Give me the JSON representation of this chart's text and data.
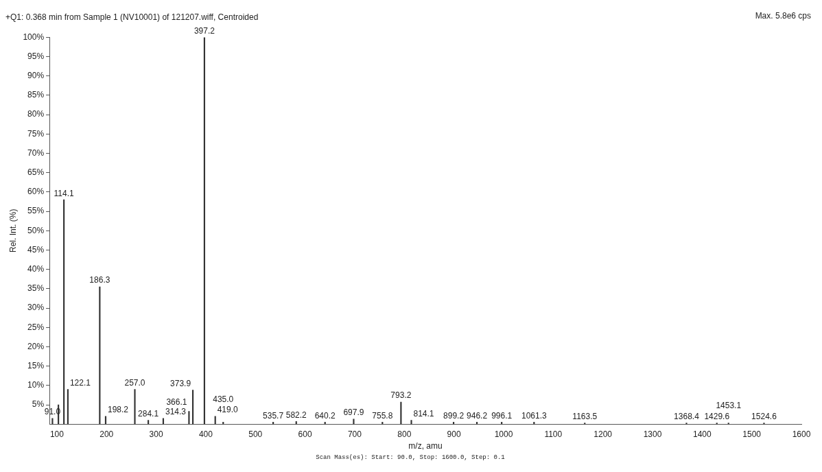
{
  "chart_data": {
    "type": "bar",
    "title": "+Q1: 0.368 min from Sample 1 (NV10001) of 121207.wiff, Centroided",
    "xlabel": "m/z, amu",
    "ylabel": "Rel. Int. (%)",
    "color": "#333333",
    "x": [
      91.0,
      103.0,
      114.1,
      122.1,
      186.3,
      198.2,
      257.0,
      284.1,
      314.3,
      366.1,
      373.9,
      397.2,
      419.0,
      435.0,
      535.7,
      582.2,
      640.2,
      697.9,
      755.8,
      793.2,
      814.1,
      899.2,
      946.2,
      996.1,
      1061.3,
      1163.5,
      1368.4,
      1429.6,
      1453.1,
      1524.6
    ],
    "values": [
      1.5,
      5,
      58,
      9,
      35.5,
      2,
      9,
      1,
      1.5,
      3.3,
      8.8,
      100,
      2,
      0.5,
      0.5,
      0.7,
      0.5,
      1.3,
      0.5,
      5.7,
      1,
      0.5,
      0.5,
      0.5,
      0.5,
      0.3,
      0.3,
      0.3,
      0.3,
      0.3
    ],
    "xlim": [
      85,
      1600
    ],
    "xticks": [
      100,
      200,
      300,
      400,
      500,
      600,
      700,
      800,
      900,
      1000,
      1100,
      1200,
      1300,
      1400,
      1500,
      1600
    ],
    "ylim": [
      0,
      100
    ],
    "yticks": [
      {
        "value": 5,
        "label": "5%"
      },
      {
        "value": 10,
        "label": "10%"
      },
      {
        "value": 15,
        "label": "15%"
      },
      {
        "value": 20,
        "label": "20%"
      },
      {
        "value": 25,
        "label": "25%"
      },
      {
        "value": 30,
        "label": "30%"
      },
      {
        "value": 35,
        "label": "35%"
      },
      {
        "value": 40,
        "label": "40%"
      },
      {
        "value": 45,
        "label": "45%"
      },
      {
        "value": 50,
        "label": "50%"
      },
      {
        "value": 55,
        "label": "55%"
      },
      {
        "value": 60,
        "label": "60%"
      },
      {
        "value": 65,
        "label": "65%"
      },
      {
        "value": 70,
        "label": "70%"
      },
      {
        "value": 75,
        "label": "75%"
      },
      {
        "value": 80,
        "label": "80%"
      },
      {
        "value": 85,
        "label": "85%"
      },
      {
        "value": 90,
        "label": "90%"
      },
      {
        "value": 95,
        "label": "95%"
      },
      {
        "value": 100,
        "label": "100%"
      }
    ],
    "grid": false,
    "legend": false,
    "annotations": [
      "Max. 5.8e6 cps",
      "Scan Mass(es): Start: 90.0, Stop: 1600.0, Step: 0.1",
      {
        "text": "91.0",
        "x": 91.0,
        "y": 1.5
      },
      {
        "text": "114.1",
        "x": 114.1,
        "y": 58
      },
      {
        "text": "122.1",
        "x": 122.1,
        "y": 9
      },
      {
        "text": "186.3",
        "x": 186.3,
        "y": 35.5
      },
      {
        "text": "198.2",
        "x": 198.2,
        "y": 2
      },
      {
        "text": "257.0",
        "x": 257.0,
        "y": 9
      },
      {
        "text": "284.1",
        "x": 284.1,
        "y": 1
      },
      {
        "text": "314.3",
        "x": 314.3,
        "y": 1.5
      },
      {
        "text": "366.1",
        "x": 366.1,
        "y": 3.3
      },
      {
        "text": "373.9",
        "x": 373.9,
        "y": 8.8
      },
      {
        "text": "397.2",
        "x": 397.2,
        "y": 100
      },
      {
        "text": "419.0",
        "x": 419.0,
        "y": 2
      },
      {
        "text": "435.0",
        "x": 435.0,
        "y": 0.5
      },
      {
        "text": "535.7",
        "x": 535.7,
        "y": 0.5
      },
      {
        "text": "582.2",
        "x": 582.2,
        "y": 0.7
      },
      {
        "text": "640.2",
        "x": 640.2,
        "y": 0.5
      },
      {
        "text": "697.9",
        "x": 697.9,
        "y": 1.3
      },
      {
        "text": "755.8",
        "x": 755.8,
        "y": 0.5
      },
      {
        "text": "793.2",
        "x": 793.2,
        "y": 5.7
      },
      {
        "text": "814.1",
        "x": 814.1,
        "y": 1
      },
      {
        "text": "899.2",
        "x": 899.2,
        "y": 0.5
      },
      {
        "text": "946.2",
        "x": 946.2,
        "y": 0.5
      },
      {
        "text": "996.1",
        "x": 996.1,
        "y": 0.5
      },
      {
        "text": "1061.3",
        "x": 1061.3,
        "y": 0.5
      },
      {
        "text": "1163.5",
        "x": 1163.5,
        "y": 0.3
      },
      {
        "text": "1368.4",
        "x": 1368.4,
        "y": 0.3
      },
      {
        "text": "1429.6",
        "x": 1429.6,
        "y": 0.3
      },
      {
        "text": "1453.1",
        "x": 1453.1,
        "y": 0.3
      },
      {
        "text": "1524.6",
        "x": 1524.6,
        "y": 0.3
      }
    ]
  }
}
